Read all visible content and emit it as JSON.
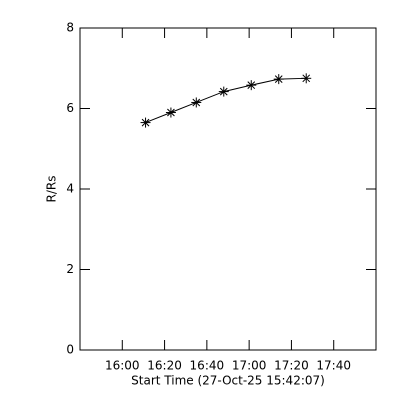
{
  "chart_data": {
    "type": "line",
    "x_label": "Start Time (27-Oct-25 15:42:07)",
    "y_label": "R/Rs",
    "x": [
      971,
      983,
      995,
      1008,
      1021,
      1034,
      1047
    ],
    "values": [
      5.65,
      5.9,
      6.15,
      6.42,
      6.58,
      6.73,
      6.75
    ],
    "color": "#000000",
    "marker": "asterisk",
    "xlim": [
      940,
      1080
    ],
    "xticks": [
      {
        "value": 960,
        "label": "16:00"
      },
      {
        "value": 980,
        "label": "16:20"
      },
      {
        "value": 1000,
        "label": "16:40"
      },
      {
        "value": 1020,
        "label": "17:00"
      },
      {
        "value": 1040,
        "label": "17:20"
      },
      {
        "value": 1060,
        "label": "17:40"
      }
    ],
    "ylim": [
      0,
      8
    ],
    "yticks": [
      0,
      2,
      4,
      6,
      8
    ],
    "grid": false
  }
}
